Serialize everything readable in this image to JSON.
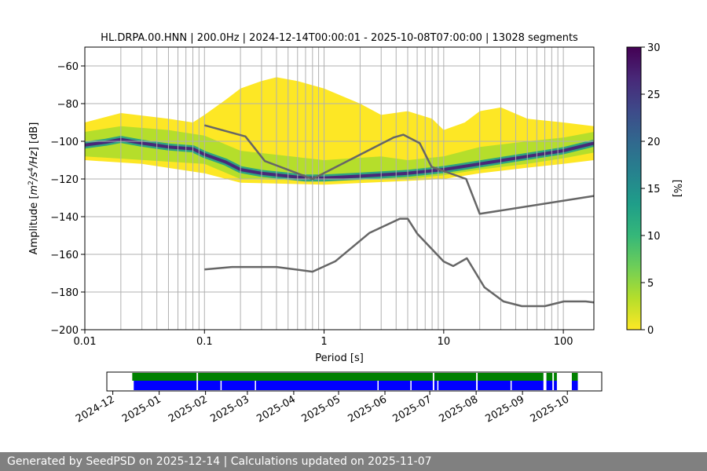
{
  "chart_data": [
    {
      "type": "heatmap",
      "title": "HL.DRPA.00.HNN | 200.0Hz | 2024-12-14T00:00:01 - 2025-10-08T07:00:00 | 13028 segments",
      "xlabel": "Period [s]",
      "ylabel_parts": [
        "Amplitude [",
        "m",
        "2",
        "/s",
        "4",
        "/Hz",
        "] [dB]"
      ],
      "x_scale": "log",
      "xlim": [
        0.01,
        180
      ],
      "ylim": [
        -200,
        -50
      ],
      "x_ticks": [
        {
          "value": 0.01,
          "label": "0.01"
        },
        {
          "value": 0.1,
          "label": "0.1"
        },
        {
          "value": 1,
          "label": "1"
        },
        {
          "value": 10,
          "label": "10"
        },
        {
          "value": 100,
          "label": "100"
        }
      ],
      "y_ticks": [
        {
          "value": -60,
          "label": "−60"
        },
        {
          "value": -80,
          "label": "−80"
        },
        {
          "value": -100,
          "label": "−100"
        },
        {
          "value": -120,
          "label": "−120"
        },
        {
          "value": -140,
          "label": "−140"
        },
        {
          "value": -160,
          "label": "−160"
        },
        {
          "value": -180,
          "label": "−180"
        },
        {
          "value": -200,
          "label": "−200"
        }
      ],
      "grid": true,
      "colorbar": {
        "label": "[%]",
        "range": [
          0,
          30
        ],
        "ticks": [
          {
            "value": 0,
            "label": "0"
          },
          {
            "value": 5,
            "label": "5"
          },
          {
            "value": 10,
            "label": "10"
          },
          {
            "value": 15,
            "label": "15"
          },
          {
            "value": 20,
            "label": "20"
          },
          {
            "value": 25,
            "label": "25"
          },
          {
            "value": 30,
            "label": "30"
          }
        ],
        "colors": [
          "#fde725",
          "#b5de2b",
          "#6ece58",
          "#35b779",
          "#1f9e89",
          "#26828e",
          "#31688e",
          "#3e4989",
          "#482878",
          "#440154"
        ]
      },
      "psd_mode": [
        [
          0.01,
          -102
        ],
        [
          0.015,
          -100.5
        ],
        [
          0.02,
          -99
        ],
        [
          0.03,
          -101
        ],
        [
          0.05,
          -103
        ],
        [
          0.08,
          -104
        ],
        [
          0.1,
          -107
        ],
        [
          0.15,
          -111
        ],
        [
          0.2,
          -115
        ],
        [
          0.3,
          -117
        ],
        [
          0.5,
          -118.5
        ],
        [
          0.7,
          -119.5
        ],
        [
          1,
          -119.5
        ],
        [
          2,
          -118.5
        ],
        [
          5,
          -117
        ],
        [
          10,
          -115
        ],
        [
          20,
          -112
        ],
        [
          50,
          -108
        ],
        [
          100,
          -105
        ],
        [
          180,
          -101
        ]
      ],
      "psd_band_inner": {
        "lower": [
          [
            0.01,
            -108
          ],
          [
            0.1,
            -112
          ],
          [
            0.2,
            -120
          ],
          [
            1,
            -121
          ],
          [
            5,
            -120
          ],
          [
            10,
            -118
          ],
          [
            20,
            -115
          ],
          [
            50,
            -112
          ],
          [
            100,
            -109
          ],
          [
            180,
            -106
          ]
        ],
        "upper": [
          [
            0.01,
            -95
          ],
          [
            0.02,
            -92
          ],
          [
            0.05,
            -94
          ],
          [
            0.1,
            -97
          ],
          [
            0.2,
            -105
          ],
          [
            1,
            -110
          ],
          [
            3,
            -108
          ],
          [
            5,
            -110
          ],
          [
            10,
            -108
          ],
          [
            20,
            -103
          ],
          [
            50,
            -100
          ],
          [
            100,
            -98
          ],
          [
            180,
            -95
          ]
        ]
      },
      "psd_band_outer": {
        "lower": [
          [
            0.01,
            -110
          ],
          [
            0.03,
            -112
          ],
          [
            0.1,
            -117
          ],
          [
            0.2,
            -122
          ],
          [
            1,
            -123
          ],
          [
            5,
            -121
          ],
          [
            10,
            -120
          ],
          [
            20,
            -117
          ],
          [
            50,
            -114
          ],
          [
            100,
            -112
          ],
          [
            180,
            -110
          ]
        ],
        "upper": [
          [
            0.01,
            -90
          ],
          [
            0.02,
            -85
          ],
          [
            0.05,
            -88
          ],
          [
            0.08,
            -90
          ],
          [
            0.1,
            -86
          ],
          [
            0.15,
            -78
          ],
          [
            0.2,
            -72
          ],
          [
            0.3,
            -68
          ],
          [
            0.4,
            -66
          ],
          [
            0.6,
            -68
          ],
          [
            1,
            -72
          ],
          [
            2,
            -80
          ],
          [
            3,
            -86
          ],
          [
            5,
            -84
          ],
          [
            8,
            -88
          ],
          [
            10,
            -94
          ],
          [
            15,
            -90
          ],
          [
            20,
            -84
          ],
          [
            30,
            -82
          ],
          [
            50,
            -88
          ],
          [
            100,
            -90
          ],
          [
            180,
            -92
          ]
        ]
      },
      "nhnm": [
        [
          0.1,
          -91.5
        ],
        [
          0.22,
          -97.4
        ],
        [
          0.32,
          -110.5
        ],
        [
          0.8,
          -120
        ],
        [
          3.8,
          -98
        ],
        [
          4.6,
          -96.5
        ],
        [
          6.3,
          -101
        ],
        [
          7.9,
          -113.5
        ],
        [
          15.4,
          -120
        ],
        [
          20,
          -138.5
        ],
        [
          180,
          -129
        ]
      ],
      "nlnm": [
        [
          0.1,
          -168
        ],
        [
          0.17,
          -166.7
        ],
        [
          0.4,
          -166.7
        ],
        [
          0.8,
          -169.2
        ],
        [
          1.24,
          -163.7
        ],
        [
          2.4,
          -148.6
        ],
        [
          4.3,
          -141.1
        ],
        [
          5,
          -141.1
        ],
        [
          6,
          -149
        ],
        [
          10,
          -163.8
        ],
        [
          12,
          -166.2
        ],
        [
          15.6,
          -162.1
        ],
        [
          21.9,
          -177.5
        ],
        [
          31.6,
          -185
        ],
        [
          45,
          -187.5
        ],
        [
          70,
          -187.5
        ],
        [
          101,
          -185
        ],
        [
          154,
          -185
        ],
        [
          180,
          -185.5
        ]
      ],
      "minor_x_gridlines": true
    },
    {
      "type": "timeline",
      "x_ticks": [
        {
          "date": "2024-12-01",
          "label": "2024-12"
        },
        {
          "date": "2025-01-01",
          "label": "2025-01"
        },
        {
          "date": "2025-02-01",
          "label": "2025-02"
        },
        {
          "date": "2025-03-01",
          "label": "2025-03"
        },
        {
          "date": "2025-04-01",
          "label": "2025-04"
        },
        {
          "date": "2025-05-01",
          "label": "2025-05"
        },
        {
          "date": "2025-06-01",
          "label": "2025-06"
        },
        {
          "date": "2025-07-01",
          "label": "2025-07"
        },
        {
          "date": "2025-08-01",
          "label": "2025-08"
        },
        {
          "date": "2025-09-01",
          "label": "2025-09"
        },
        {
          "date": "2025-10-01",
          "label": "2025-10"
        }
      ],
      "xlim": [
        "2024-11-27",
        "2025-10-24"
      ],
      "coverage_green": {
        "color": "#008000",
        "start": "2024-12-14",
        "end": "2025-10-08",
        "gaps": [
          [
            "2025-01-26",
            "2025-01-27"
          ],
          [
            "2025-07-03",
            "2025-07-04"
          ],
          [
            "2025-08-01",
            "2025-08-02"
          ],
          [
            "2025-09-15",
            "2025-09-17"
          ],
          [
            "2025-09-21",
            "2025-09-22"
          ],
          [
            "2025-09-24",
            "2025-10-04"
          ]
        ]
      },
      "coverage_blue": {
        "color": "#0000ff",
        "start": "2024-12-15",
        "end": "2025-10-08",
        "gaps": [
          [
            "2025-01-26",
            "2025-01-27"
          ],
          [
            "2025-02-11",
            "2025-02-11"
          ],
          [
            "2025-03-06",
            "2025-03-06"
          ],
          [
            "2025-05-27",
            "2025-05-27"
          ],
          [
            "2025-06-18",
            "2025-06-18"
          ],
          [
            "2025-07-03",
            "2025-07-04"
          ],
          [
            "2025-07-06",
            "2025-07-06"
          ],
          [
            "2025-08-01",
            "2025-08-02"
          ],
          [
            "2025-08-24",
            "2025-08-24"
          ],
          [
            "2025-09-15",
            "2025-09-17"
          ],
          [
            "2025-09-21",
            "2025-09-22"
          ],
          [
            "2025-09-24",
            "2025-10-04"
          ]
        ]
      }
    }
  ],
  "footer": {
    "text": "Generated by SeedPSD on 2025-12-14 | Calculations updated on 2025-11-07"
  }
}
